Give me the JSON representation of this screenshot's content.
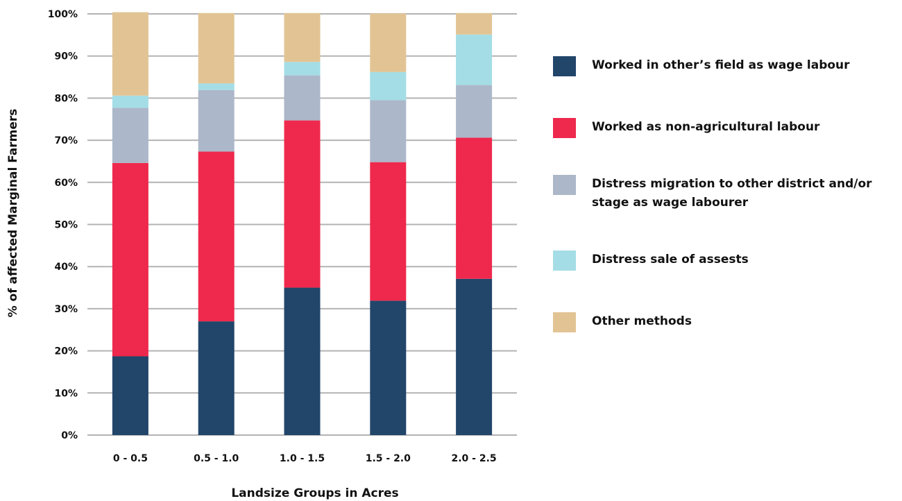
{
  "chart_data": {
    "type": "bar",
    "stacked": true,
    "xlabel": "Landsize Groups in Acres",
    "ylabel": "% of affected Marginal Farmers",
    "ylim": [
      0,
      100
    ],
    "yticks": [
      "0%",
      "10%",
      "20%",
      "30%",
      "40%",
      "50%",
      "60%",
      "70%",
      "80%",
      "90%",
      "100%"
    ],
    "categories": [
      "0 - 0.5",
      "0.5 - 1.0",
      "1.0 - 1.5",
      "1.5 - 2.0",
      "2.0 - 2.5"
    ],
    "grid": true,
    "legend_position": "right",
    "series": [
      {
        "name": "Worked in other’s field as wage labour",
        "color": "#22456a",
        "values": [
          18.7,
          27.0,
          35.0,
          31.9,
          37.1
        ]
      },
      {
        "name": "Worked as non-agricultural labour",
        "color": "#ee294d",
        "values": [
          45.9,
          40.3,
          39.7,
          32.9,
          33.5
        ]
      },
      {
        "name": "Distress migration to other district and/or stage as wage labourer",
        "color": "#acb7c9",
        "values": [
          13.1,
          14.6,
          10.7,
          14.7,
          12.5
        ]
      },
      {
        "name": "Distress sale of assests",
        "color": "#a4dde5",
        "values": [
          2.9,
          1.6,
          3.2,
          6.7,
          12.0
        ]
      },
      {
        "name": "Other methods",
        "color": "#e2c494",
        "values": [
          19.8,
          16.7,
          11.6,
          13.9,
          5.1
        ]
      }
    ]
  }
}
